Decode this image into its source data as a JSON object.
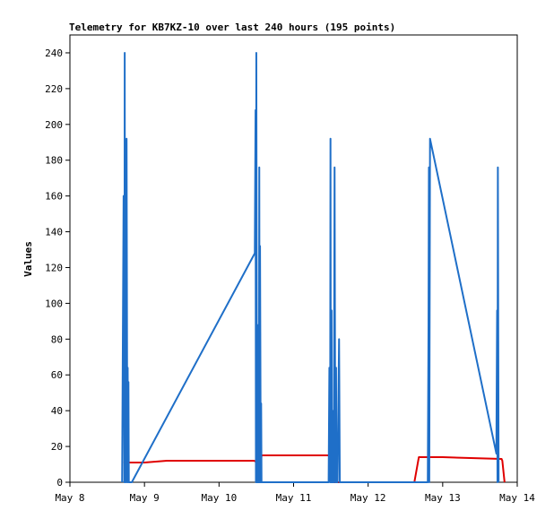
{
  "chart_data": {
    "type": "line",
    "title": "Telemetry for KB7KZ-10 over last 240 hours (195 points)",
    "xlabel": "",
    "ylabel": "Values",
    "x_tick_labels": [
      "May 8",
      "May 9",
      "May 10",
      "May 11",
      "May 12",
      "May 13",
      "May 14"
    ],
    "xlim": [
      0,
      6
    ],
    "ylim": [
      0,
      250
    ],
    "y_ticks": [
      0,
      20,
      40,
      60,
      80,
      100,
      120,
      140,
      160,
      180,
      200,
      220,
      240
    ],
    "grid": false,
    "legend": "none",
    "series": [
      {
        "color": "#1f6fc8",
        "x": [
          0.7,
          0.72,
          0.73,
          0.735,
          0.74,
          0.75,
          0.755,
          0.76,
          0.77,
          0.775,
          0.78,
          0.785,
          0.79,
          0.795,
          0.8,
          0.81,
          0.82,
          0.83,
          2.48,
          2.49,
          2.495,
          2.5,
          2.51,
          2.52,
          2.53,
          2.535,
          2.54,
          2.545,
          2.55,
          2.56,
          2.565,
          2.57,
          3.47,
          3.48,
          3.49,
          3.495,
          3.5,
          3.51,
          3.515,
          3.52,
          3.53,
          3.54,
          3.55,
          3.56,
          3.57,
          3.575,
          3.58,
          3.59,
          3.6,
          3.61,
          3.62,
          3.63,
          3.64,
          4.8,
          4.81,
          4.815,
          4.82,
          4.83,
          5.72,
          5.73,
          5.735,
          5.74,
          5.75
        ],
        "y": [
          0,
          160,
          0,
          240,
          0,
          176,
          0,
          192,
          0,
          64,
          0,
          56,
          0,
          0,
          0,
          0,
          0,
          0,
          128,
          208,
          0,
          240,
          0,
          0,
          88,
          0,
          176,
          0,
          132,
          0,
          44,
          0,
          0,
          64,
          0,
          192,
          0,
          96,
          0,
          40,
          0,
          0,
          176,
          0,
          64,
          0,
          0,
          0,
          40,
          80,
          0,
          0,
          0,
          0,
          88,
          176,
          0,
          192,
          16,
          96,
          0,
          176,
          0
        ]
      },
      {
        "color": "#e00000",
        "x": [
          0.72,
          1.0,
          1.3,
          2.0,
          2.47,
          2.56,
          2.57,
          2.59,
          3.5,
          3.52,
          3.53,
          4.62,
          4.68,
          4.7,
          5.0,
          5.79,
          5.8,
          5.83
        ],
        "y": [
          11,
          11,
          12,
          12,
          12,
          10,
          15,
          15,
          15,
          15,
          0,
          0,
          14,
          14,
          14,
          13,
          12,
          0
        ]
      }
    ]
  }
}
